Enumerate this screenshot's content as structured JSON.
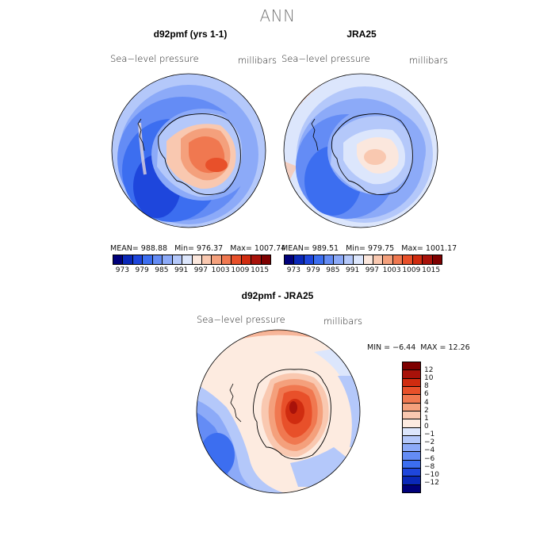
{
  "title": "ANN",
  "panels": [
    {
      "title": "d92pmf (yrs 1-1)",
      "left_label": "Sea−level pressure",
      "right_label": "millibars",
      "mean_label": "MEAN=",
      "mean": "988.88",
      "min_label": "Min=",
      "min": "976.37",
      "max_label": "Max=",
      "max": "1007.74"
    },
    {
      "title": "JRA25",
      "left_label": "Sea−level pressure",
      "right_label": "millibars",
      "mean_label": "MEAN=",
      "mean": "989.51",
      "min_label": "Min=",
      "min": "979.75",
      "max_label": "Max=",
      "max": "1001.17"
    }
  ],
  "diff": {
    "title": "d92pmf - JRA25",
    "left_label": "Sea−level pressure",
    "right_label": "millibars",
    "min_label": "MIN =",
    "min": "−6.44",
    "max_label": "MAX =",
    "max": "12.26"
  },
  "abs_colorbar": {
    "colors": [
      "#00007a",
      "#0a28b8",
      "#1e46dc",
      "#3c6ef0",
      "#648cf5",
      "#8caaf8",
      "#b4c8fa",
      "#dce6fc",
      "#fbe7dd",
      "#f9c8b0",
      "#f4a07c",
      "#f07850",
      "#e8502a",
      "#d02c10",
      "#a8120a",
      "#7e0000"
    ],
    "ticks": [
      "973",
      "979",
      "985",
      "991",
      "997",
      "1003",
      "1009",
      "1015"
    ]
  },
  "diff_colorbar": {
    "colors": [
      "#7e0000",
      "#a8120a",
      "#d02c10",
      "#e8502a",
      "#f07850",
      "#f4a07c",
      "#f9c8b0",
      "#fdebe0",
      "#dce6fc",
      "#b4c8fa",
      "#8caaf8",
      "#648cf5",
      "#3c6ef0",
      "#1e46dc",
      "#0a28b8",
      "#00007a"
    ],
    "ticks": [
      "12",
      "10",
      "8",
      "6",
      "4",
      "2",
      "1",
      "0",
      "−1",
      "−2",
      "−4",
      "−6",
      "−8",
      "−10",
      "−12"
    ]
  }
}
